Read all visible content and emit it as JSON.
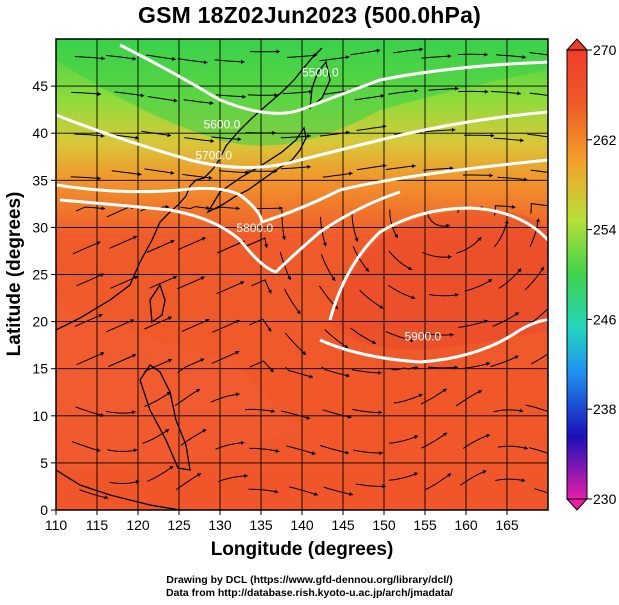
{
  "title": "GSM 18Z02Jun2023 (500.0hPa)",
  "axes": {
    "xlabel": "Longitude (degrees)",
    "ylabel": "Latitude  (degrees)",
    "xticks": [
      "110",
      "115",
      "120",
      "125",
      "130",
      "135",
      "140",
      "145",
      "150",
      "155",
      "160",
      "165"
    ],
    "yticks": [
      "0",
      "5",
      "10",
      "15",
      "20",
      "25",
      "30",
      "35",
      "40",
      "45"
    ],
    "xrange": [
      110,
      170
    ],
    "yrange": [
      0,
      50
    ]
  },
  "colorbar": {
    "labels": [
      "270",
      "262",
      "254",
      "246",
      "238",
      "230"
    ],
    "range": [
      230,
      270
    ],
    "colors": [
      "#e81ea8",
      "#1a10b8",
      "#1e8ff0",
      "#24d6c0",
      "#3fd24a",
      "#b6e038",
      "#f3a22b",
      "#f05a28",
      "#ee3d2a"
    ]
  },
  "contours": [
    {
      "label": "5600.0",
      "lon": 128.0,
      "lat": 40.5
    },
    {
      "label": "5700.0",
      "lon": 127.0,
      "lat": 37.2
    },
    {
      "label": "5800.0",
      "lon": 132.0,
      "lat": 29.5
    },
    {
      "label": "5900.0",
      "lon": 152.5,
      "lat": 18.0
    },
    {
      "label": "5500.0",
      "lon": 140.0,
      "lat": 46.0
    }
  ],
  "credits": {
    "line1": "Drawing by DCL (https://www.gfd-dennou.org/library/dcl/)",
    "line2": "Data from http://database.rish.kyoto-u.ac.jp/arch/jmadata/"
  }
}
